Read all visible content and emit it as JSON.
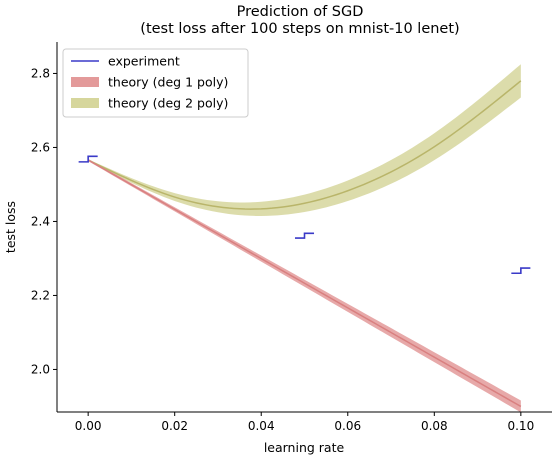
{
  "chart_data": {
    "type": "line",
    "title": "Prediction of SGD",
    "subtitle": "(test loss after 100 steps on mnist-10 lenet)",
    "xlabel": "learning rate",
    "ylabel": "test loss",
    "xlim": [
      -0.0072,
      0.1072
    ],
    "ylim": [
      1.885,
      2.885
    ],
    "xticks": [
      0.0,
      0.02,
      0.04,
      0.06,
      0.08,
      0.1
    ],
    "xtick_labels": [
      "0.00",
      "0.02",
      "0.04",
      "0.06",
      "0.08",
      "0.10"
    ],
    "yticks": [
      2.0,
      2.2,
      2.4,
      2.6,
      2.8
    ],
    "ytick_labels": [
      "2.0",
      "2.2",
      "2.4",
      "2.6",
      "2.8"
    ],
    "grid": false,
    "legend_position": "top-left",
    "series": [
      {
        "name": "experiment",
        "kind": "step",
        "color": "#3a3ac8",
        "points": [
          {
            "x": 0.0,
            "y_low": 2.561,
            "y_high": 2.576
          },
          {
            "x": 0.05,
            "y_low": 2.355,
            "y_high": 2.368
          },
          {
            "x": 0.1,
            "y_low": 2.26,
            "y_high": 2.274
          }
        ]
      },
      {
        "name": "theory (deg 1 poly)",
        "kind": "band",
        "line_color": "#d98080",
        "fill_color": "#e39a9a",
        "x": [
          0.0,
          0.1
        ],
        "y": [
          2.566,
          1.9
        ],
        "halfwidth_start": 0.003,
        "halfwidth_end": 0.016
      },
      {
        "name": "theory (deg 2 poly)",
        "kind": "band",
        "line_color": "#b9b56a",
        "fill_color": "#d6d69c",
        "x": [
          0.0,
          0.02,
          0.04,
          0.06,
          0.08,
          0.1
        ],
        "y": [
          2.566,
          2.466,
          2.434,
          2.483,
          2.602,
          2.78
        ],
        "halfwidth_start": 0.002,
        "halfwidth_end": 0.045
      }
    ]
  }
}
